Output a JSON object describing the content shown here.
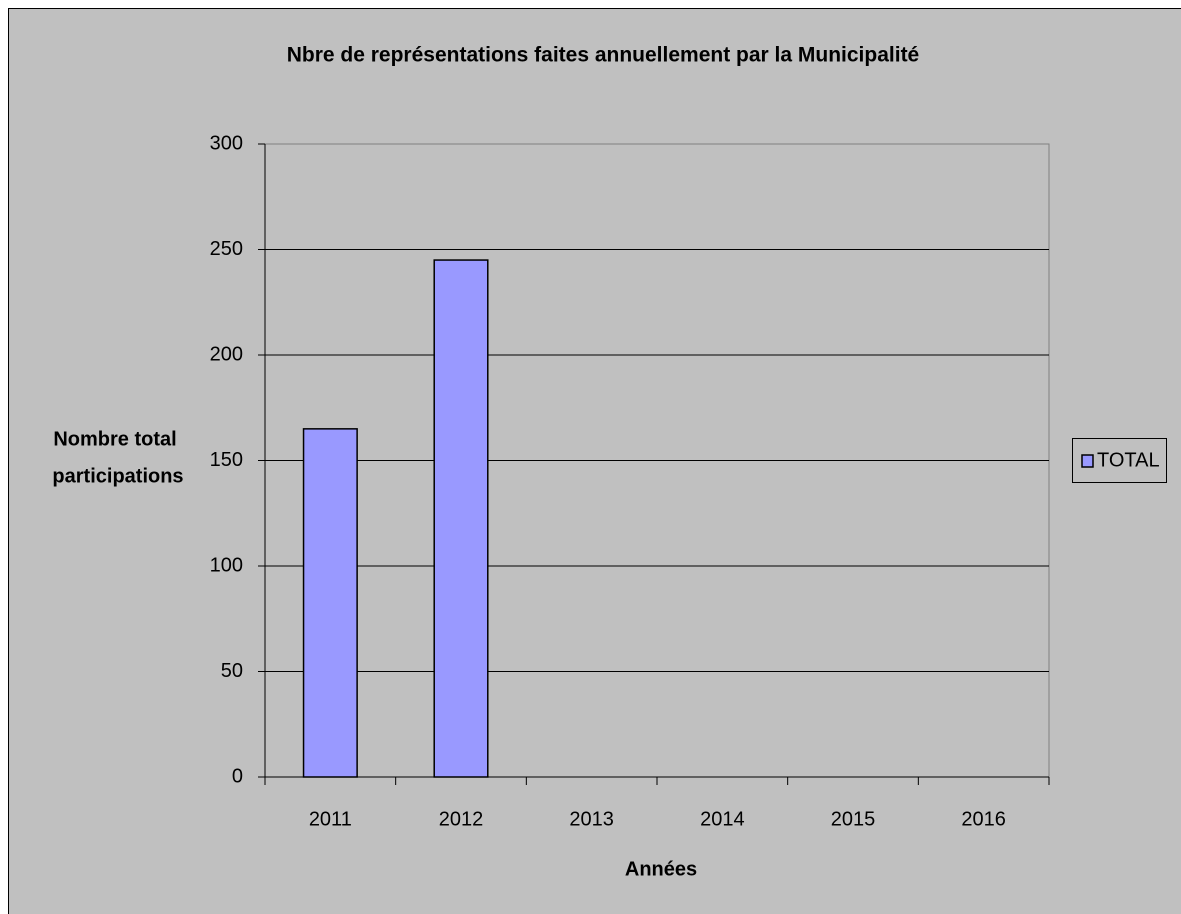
{
  "chart_data": {
    "type": "bar",
    "title": "Nbre de représentations faites annuellement par la Municipalité",
    "xlabel": "Années",
    "ylabel": [
      "Nombre total",
      "participations"
    ],
    "categories": [
      "2011",
      "2012",
      "2013",
      "2014",
      "2015",
      "2016"
    ],
    "series": [
      {
        "name": "TOTAL",
        "color": "#9999ff",
        "values": [
          165,
          245,
          null,
          null,
          null,
          null
        ]
      }
    ],
    "ylim": [
      0,
      300
    ],
    "yticks": [
      0,
      50,
      100,
      150,
      200,
      250,
      300
    ],
    "grid": true,
    "legend": "right"
  }
}
